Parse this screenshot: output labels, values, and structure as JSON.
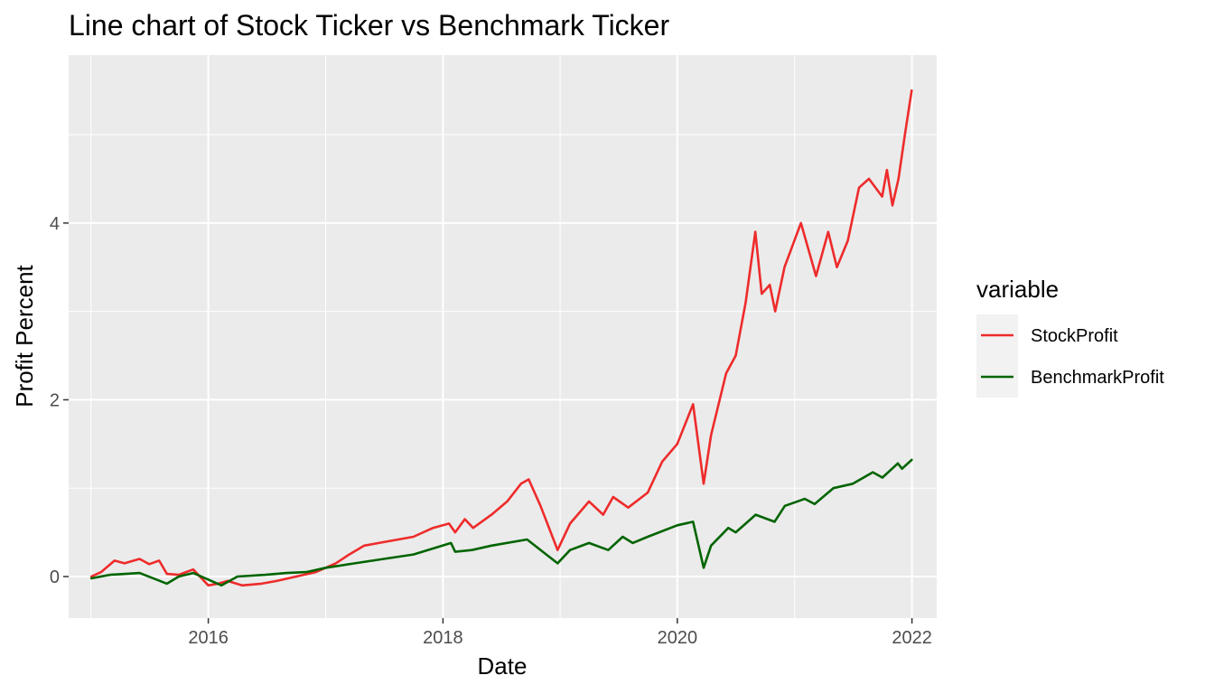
{
  "chart_data": {
    "type": "line",
    "title": "Line chart of Stock Ticker vs Benchmark Ticker",
    "xlabel": "Date",
    "ylabel": "Profit Percent",
    "xlim": [
      "2014-10-23",
      "2022-03-19"
    ],
    "ylim": [
      -0.47,
      5.9
    ],
    "x_ticks": [
      {
        "value": "2016-01-01",
        "label": "2016"
      },
      {
        "value": "2018-01-01",
        "label": "2018"
      },
      {
        "value": "2020-01-01",
        "label": "2020"
      },
      {
        "value": "2022-01-01",
        "label": "2022"
      }
    ],
    "y_ticks": [
      {
        "value": 0,
        "label": "0"
      },
      {
        "value": 2,
        "label": "2"
      },
      {
        "value": 4,
        "label": "4"
      }
    ],
    "grid": true,
    "background": "#ebebeb",
    "legend": {
      "title": "variable",
      "position": "right",
      "entries": [
        {
          "label": "StockProfit",
          "color": "#ee2b2b"
        },
        {
          "label": "BenchmarkProfit",
          "color": "#006400"
        }
      ]
    },
    "series": [
      {
        "name": "StockProfit",
        "color": "#ee2b2b",
        "x": [
          "2015-01-02",
          "2015-02-01",
          "2015-03-15",
          "2015-04-15",
          "2015-06-01",
          "2015-07-01",
          "2015-08-01",
          "2015-08-25",
          "2015-10-01",
          "2015-11-15",
          "2016-01-01",
          "2016-02-01",
          "2016-03-01",
          "2016-04-15",
          "2016-06-15",
          "2016-08-01",
          "2016-10-01",
          "2016-12-01",
          "2017-02-01",
          "2017-03-15",
          "2017-05-01",
          "2017-06-15",
          "2017-08-15",
          "2017-10-01",
          "2017-12-01",
          "2018-01-20",
          "2018-02-08",
          "2018-03-10",
          "2018-04-05",
          "2018-06-01",
          "2018-07-20",
          "2018-09-01",
          "2018-09-25",
          "2018-11-01",
          "2018-12-24",
          "2019-02-01",
          "2019-04-01",
          "2019-05-15",
          "2019-06-15",
          "2019-08-01",
          "2019-10-01",
          "2019-11-15",
          "2020-01-01",
          "2020-02-19",
          "2020-03-23",
          "2020-04-15",
          "2020-06-01",
          "2020-07-01",
          "2020-08-01",
          "2020-08-31",
          "2020-09-20",
          "2020-10-15",
          "2020-11-01",
          "2020-11-30",
          "2021-01-20",
          "2021-03-08",
          "2021-04-15",
          "2021-05-12",
          "2021-06-15",
          "2021-07-20",
          "2021-08-20",
          "2021-09-30",
          "2021-10-15",
          "2021-11-01",
          "2021-11-20",
          "2021-12-10",
          "2021-12-31"
        ],
        "values": [
          0.0,
          0.05,
          0.18,
          0.15,
          0.2,
          0.14,
          0.18,
          0.03,
          0.02,
          0.08,
          -0.1,
          -0.08,
          -0.05,
          -0.1,
          -0.08,
          -0.05,
          0.0,
          0.05,
          0.15,
          0.25,
          0.35,
          0.38,
          0.42,
          0.45,
          0.55,
          0.6,
          0.5,
          0.65,
          0.55,
          0.7,
          0.85,
          1.05,
          1.1,
          0.8,
          0.3,
          0.6,
          0.85,
          0.7,
          0.9,
          0.78,
          0.95,
          1.3,
          1.5,
          1.95,
          1.05,
          1.6,
          2.3,
          2.5,
          3.1,
          3.9,
          3.2,
          3.3,
          3.0,
          3.5,
          4.0,
          3.4,
          3.9,
          3.5,
          3.8,
          4.4,
          4.5,
          4.3,
          4.6,
          4.2,
          4.5,
          5.0,
          5.5
        ]
      },
      {
        "name": "BenchmarkProfit",
        "color": "#006400",
        "x": [
          "2015-01-02",
          "2015-03-01",
          "2015-06-01",
          "2015-08-25",
          "2015-10-01",
          "2015-11-15",
          "2016-02-11",
          "2016-04-01",
          "2016-06-27",
          "2016-09-01",
          "2016-11-01",
          "2017-01-01",
          "2017-04-01",
          "2017-07-01",
          "2017-10-01",
          "2018-01-26",
          "2018-02-08",
          "2018-04-01",
          "2018-06-01",
          "2018-09-20",
          "2018-12-24",
          "2019-02-01",
          "2019-04-01",
          "2019-05-31",
          "2019-07-15",
          "2019-08-15",
          "2019-10-01",
          "2020-01-01",
          "2020-02-19",
          "2020-03-23",
          "2020-04-15",
          "2020-06-08",
          "2020-07-01",
          "2020-09-01",
          "2020-10-30",
          "2020-12-01",
          "2021-02-01",
          "2021-03-04",
          "2021-05-01",
          "2021-07-01",
          "2021-09-01",
          "2021-10-01",
          "2021-11-18",
          "2021-12-01",
          "2021-12-31"
        ],
        "values": [
          -0.02,
          0.02,
          0.04,
          -0.08,
          0.0,
          0.04,
          -0.1,
          0.0,
          0.02,
          0.04,
          0.05,
          0.1,
          0.15,
          0.2,
          0.25,
          0.38,
          0.28,
          0.3,
          0.35,
          0.42,
          0.15,
          0.3,
          0.38,
          0.3,
          0.45,
          0.38,
          0.45,
          0.58,
          0.62,
          0.1,
          0.35,
          0.55,
          0.5,
          0.7,
          0.62,
          0.8,
          0.88,
          0.82,
          1.0,
          1.05,
          1.18,
          1.12,
          1.28,
          1.22,
          1.32
        ]
      }
    ]
  }
}
